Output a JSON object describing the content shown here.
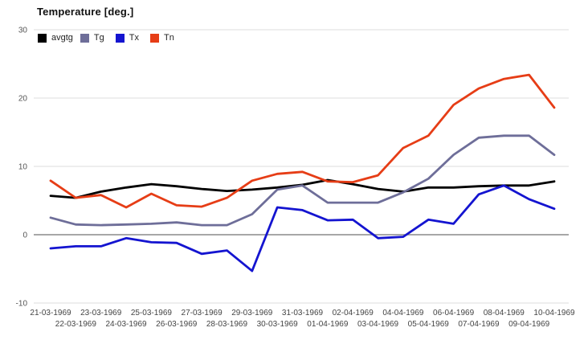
{
  "chart": {
    "title": "Temperature [deg.]"
  },
  "chart_data": {
    "type": "line",
    "title": "Temperature [deg.]",
    "categories": [
      "21-03-1969",
      "22-03-1969",
      "23-03-1969",
      "24-03-1969",
      "25-03-1969",
      "26-03-1969",
      "27-03-1969",
      "28-03-1969",
      "29-03-1969",
      "30-03-1969",
      "31-03-1969",
      "01-04-1969",
      "02-04-1969",
      "03-04-1969",
      "04-04-1969",
      "05-04-1969",
      "06-04-1969",
      "07-04-1969",
      "08-04-1969",
      "09-04-1969",
      "10-04-1969"
    ],
    "series": [
      {
        "name": "avgtg",
        "color": "#000000",
        "values": [
          5.7,
          5.4,
          6.3,
          6.9,
          7.4,
          7.1,
          6.7,
          6.4,
          6.6,
          6.9,
          7.3,
          8.0,
          7.4,
          6.7,
          6.3,
          6.9,
          6.9,
          7.1,
          7.2,
          7.2,
          7.8
        ]
      },
      {
        "name": "Tg",
        "color": "#6e6e99",
        "values": [
          2.5,
          1.5,
          1.4,
          1.5,
          1.6,
          1.8,
          1.4,
          1.4,
          3.0,
          6.6,
          7.2,
          4.7,
          4.7,
          4.7,
          6.2,
          8.2,
          11.7,
          14.2,
          14.5,
          14.5,
          11.7
        ]
      },
      {
        "name": "Tx",
        "color": "#1414d0",
        "values": [
          -2.0,
          -1.7,
          -1.7,
          -0.5,
          -1.1,
          -1.2,
          -2.8,
          -2.3,
          -5.3,
          4.0,
          3.6,
          2.1,
          2.2,
          -0.5,
          -0.3,
          2.2,
          1.6,
          5.9,
          7.2,
          5.2,
          3.8
        ]
      },
      {
        "name": "Tn",
        "color": "#e63d16",
        "values": [
          7.9,
          5.4,
          5.8,
          4.0,
          6.0,
          4.3,
          4.1,
          5.4,
          7.9,
          8.9,
          9.2,
          7.8,
          7.7,
          8.7,
          12.7,
          14.5,
          19.0,
          21.4,
          22.8,
          23.4,
          18.6
        ]
      }
    ],
    "ylim": [
      -10,
      30
    ],
    "y_ticks": [
      30,
      20,
      10,
      0,
      -10
    ],
    "grid": true,
    "legend_position": "top-left"
  }
}
